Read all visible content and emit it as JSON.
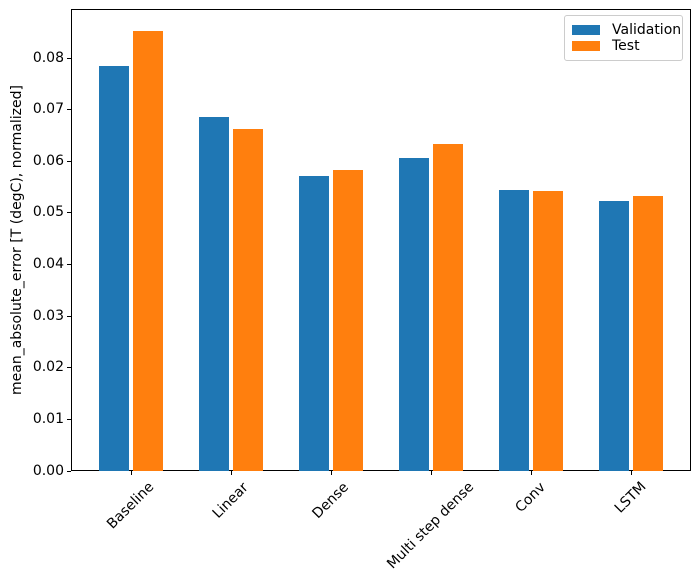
{
  "figure": {
    "background": "#ffffff"
  },
  "chart_data": {
    "type": "bar",
    "title": "",
    "xlabel": "",
    "ylabel": "mean_absolute_error [T (degC), normalized]",
    "categories": [
      "Baseline",
      "Linear",
      "Dense",
      "Multi step dense",
      "Conv",
      "LSTM"
    ],
    "series": [
      {
        "name": "Validation",
        "color": "#1f77b4",
        "values": [
          0.0785,
          0.0686,
          0.0571,
          0.0606,
          0.0545,
          0.0524
        ]
      },
      {
        "name": "Test",
        "color": "#ff7f0e",
        "values": [
          0.0852,
          0.0663,
          0.0584,
          0.0634,
          0.0543,
          0.0533
        ]
      }
    ],
    "ylim": [
      0,
      0.0895
    ],
    "ytick_values": [
      0.0,
      0.01,
      0.02,
      0.03,
      0.04,
      0.05,
      0.06,
      0.07,
      0.08
    ],
    "ytick_labels": [
      "0.00",
      "0.01",
      "0.02",
      "0.03",
      "0.04",
      "0.05",
      "0.06",
      "0.07",
      "0.08"
    ],
    "xtick_rotation_deg": 45,
    "grid": false,
    "legend": {
      "position": "upper right"
    }
  }
}
